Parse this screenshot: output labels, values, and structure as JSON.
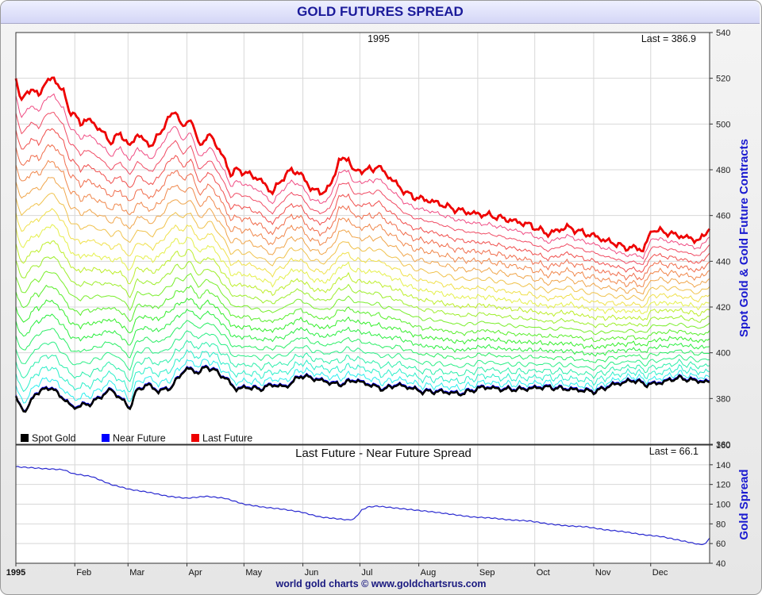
{
  "header": {
    "title": "GOLD FUTURES SPREAD"
  },
  "footer": {
    "credit": "world gold charts © www.goldchartsrus.com"
  },
  "colors": {
    "spot": "#000000",
    "near_future": "#0000ff",
    "last_future": "#ee0000",
    "spread_line": "#2a2ad0",
    "grid": "#d8d8d8",
    "axis_label": "#1a1ad0"
  },
  "chart_data": [
    {
      "type": "line",
      "title": "1995",
      "last_label": "Last = 386.9",
      "ylabel": "Spot Gold & Gold Future Contracts",
      "ylim": [
        360,
        540
      ],
      "yticks": [
        360,
        380,
        400,
        420,
        440,
        460,
        480,
        500,
        520,
        540
      ],
      "grid": true,
      "legend": {
        "placement": "bottom-left",
        "entries": [
          "Spot Gold",
          "Near Future",
          "Last Future"
        ]
      },
      "x_day_range": [
        0,
        365
      ],
      "spot_gold": {
        "name": "Spot Gold",
        "day": [
          0,
          5,
          10,
          18,
          25,
          30,
          40,
          50,
          60,
          64,
          70,
          75,
          82,
          88,
          92,
          96,
          100,
          105,
          110,
          116,
          122,
          128,
          135,
          142,
          150,
          160,
          170,
          178,
          186,
          194,
          200,
          206,
          214,
          224,
          234,
          246,
          256,
          266,
          278,
          292,
          305,
          314,
          320,
          325,
          332,
          340,
          348,
          356,
          365
        ],
        "value": [
          380,
          374,
          382,
          385,
          380,
          376,
          378,
          384,
          376,
          384,
          386,
          383,
          385,
          392,
          393,
          391,
          394,
          392,
          389,
          384,
          385,
          384,
          386,
          385,
          390,
          388,
          386,
          388,
          386,
          384,
          386,
          385,
          383,
          383,
          382,
          385,
          384,
          384,
          385,
          384,
          383,
          386,
          387,
          388,
          386,
          387,
          389,
          388,
          387
        ]
      },
      "near_future_offset": 0.5,
      "last_future": {
        "name": "Last Future",
        "day": [
          0,
          3,
          8,
          12,
          15,
          20,
          25,
          28,
          30,
          34,
          36,
          40,
          45,
          50,
          55,
          60,
          64,
          68,
          72,
          75,
          80,
          84,
          88,
          92,
          96,
          99,
          103,
          106,
          110,
          113,
          116,
          120,
          128,
          135,
          140,
          145,
          150,
          155,
          160,
          165,
          170,
          175,
          178,
          183,
          188,
          190,
          195,
          200,
          205,
          210,
          215,
          220,
          230,
          240,
          250,
          260,
          270,
          280,
          290,
          300,
          305,
          310,
          315,
          320,
          325,
          330,
          335,
          340,
          345,
          350,
          355,
          360,
          365
        ],
        "value": [
          520,
          510,
          516,
          512,
          518,
          520,
          514,
          506,
          505,
          500,
          502,
          501,
          497,
          492,
          496,
          490,
          496,
          492,
          491,
          495,
          502,
          506,
          498,
          503,
          491,
          493,
          495,
          490,
          484,
          478,
          480,
          479,
          476,
          470,
          476,
          480,
          478,
          472,
          470,
          472,
          484,
          485,
          479,
          480,
          480,
          482,
          478,
          474,
          470,
          468,
          467,
          466,
          463,
          461,
          460,
          458,
          456,
          452,
          455,
          452,
          451,
          449,
          448,
          446,
          446,
          445,
          454,
          453,
          452,
          451,
          450,
          449,
          455
        ]
      },
      "intermediate_contracts": 20
    },
    {
      "type": "line",
      "title": "Last Future - Near Future Spread",
      "last_label": "Last = 66.1",
      "ylabel": "Gold Spread",
      "ylim": [
        40,
        160
      ],
      "yticks": [
        40,
        60,
        80,
        100,
        120,
        140,
        160
      ],
      "grid": true,
      "x_day_range": [
        0,
        365
      ],
      "series": [
        {
          "name": "Last Future - Near Future Spread",
          "day": [
            0,
            8,
            15,
            25,
            30,
            40,
            50,
            60,
            70,
            80,
            90,
            100,
            110,
            120,
            130,
            140,
            150,
            160,
            165,
            170,
            175,
            178,
            182,
            185,
            190,
            200,
            210,
            220,
            240,
            250,
            260,
            270,
            280,
            290,
            300,
            310,
            320,
            330,
            340,
            350,
            360,
            363,
            365
          ],
          "value": [
            138,
            137,
            136,
            135,
            131,
            128,
            120,
            115,
            112,
            108,
            106,
            108,
            106,
            100,
            97,
            95,
            92,
            87,
            86,
            85,
            84,
            85,
            94,
            97,
            98,
            96,
            94,
            92,
            87,
            86,
            84,
            83,
            80,
            78,
            77,
            74,
            72,
            69,
            67,
            63,
            59,
            60,
            66
          ]
        }
      ],
      "xtick_labels": [
        "1995",
        "Feb",
        "Mar",
        "Apr",
        "May",
        "Jun",
        "Jul",
        "Aug",
        "Sep",
        "Oct",
        "Nov",
        "Dec"
      ],
      "xtick_days": [
        0,
        31,
        59,
        90,
        120,
        151,
        181,
        212,
        243,
        273,
        304,
        334
      ]
    }
  ]
}
